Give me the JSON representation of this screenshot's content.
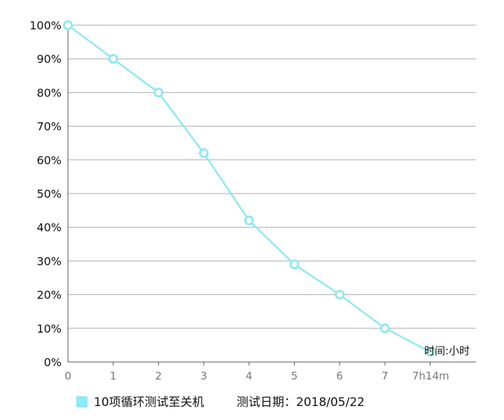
{
  "chart_data": {
    "type": "line",
    "title": "",
    "xlabel": "时间:小时",
    "ylabel": "",
    "x": [
      "0",
      "1",
      "2",
      "3",
      "4",
      "5",
      "6",
      "7",
      "7h14m"
    ],
    "series": [
      {
        "name": "10项循环测试至关机",
        "values": [
          100,
          90,
          80,
          62,
          42,
          29,
          20,
          10,
          3
        ],
        "color": "#8ee8f6"
      }
    ],
    "x_range": [
      0,
      9
    ],
    "ylim": [
      0,
      100
    ],
    "yticks": [
      "0%",
      "10%",
      "20%",
      "30%",
      "40%",
      "50%",
      "60%",
      "70%",
      "80%",
      "90%",
      "100%"
    ],
    "grid": true,
    "legend_position": "bottom-left",
    "legend_note": "测试日期：2018/05/22"
  }
}
